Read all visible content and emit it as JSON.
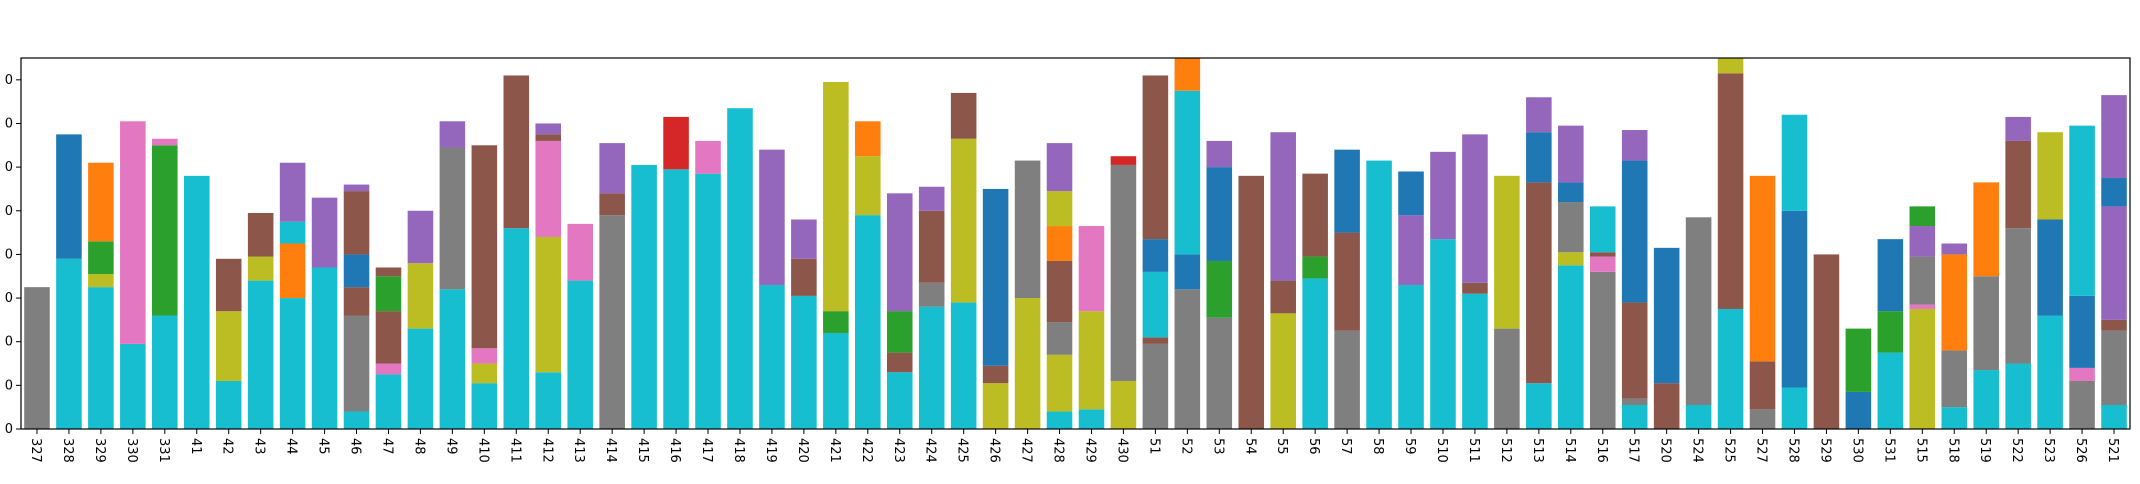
{
  "chart_data": {
    "type": "bar",
    "stacked": true,
    "title": "",
    "xlabel": "",
    "ylabel": "",
    "grid": false,
    "legend": "none",
    "ylim": [
      0,
      17
    ],
    "y_tick_labels": [
      "0",
      "0",
      "0",
      "0",
      "0",
      "0",
      "0",
      "0",
      "0"
    ],
    "categories": [
      "327",
      "328",
      "329",
      "330",
      "331",
      "41",
      "42",
      "43",
      "44",
      "45",
      "46",
      "47",
      "48",
      "49",
      "410",
      "411",
      "412",
      "413",
      "414",
      "415",
      "416",
      "417",
      "418",
      "419",
      "420",
      "421",
      "422",
      "423",
      "424",
      "425",
      "426",
      "427",
      "428",
      "429",
      "430",
      "51",
      "52",
      "53",
      "54",
      "55",
      "56",
      "57",
      "58",
      "59",
      "510",
      "511",
      "512",
      "513",
      "514",
      "516",
      "517",
      "520",
      "524",
      "525",
      "527",
      "528",
      "529",
      "530",
      "531",
      "515",
      "518",
      "519",
      "522",
      "523",
      "526",
      "521"
    ],
    "stacks": [
      [
        [
          "gray",
          6.5
        ]
      ],
      [
        [
          "cyan",
          7.8
        ],
        [
          "blue",
          5.7
        ]
      ],
      [
        [
          "cyan",
          6.5
        ],
        [
          "olive",
          0.6
        ],
        [
          "green",
          1.5
        ],
        [
          "orange",
          3.6
        ]
      ],
      [
        [
          "cyan",
          3.9
        ],
        [
          "pink",
          10.2
        ]
      ],
      [
        [
          "cyan",
          5.2
        ],
        [
          "green",
          7.8
        ],
        [
          "pink",
          0.3
        ]
      ],
      [
        [
          "cyan",
          11.6
        ]
      ],
      [
        [
          "cyan",
          2.2
        ],
        [
          "olive",
          3.2
        ],
        [
          "brown",
          2.4
        ]
      ],
      [
        [
          "cyan",
          6.8
        ],
        [
          "olive",
          1.1
        ],
        [
          "brown",
          2.0
        ]
      ],
      [
        [
          "cyan",
          6.0
        ],
        [
          "orange",
          2.5
        ],
        [
          "cyan",
          1.0
        ],
        [
          "purple",
          2.7
        ]
      ],
      [
        [
          "cyan",
          7.4
        ],
        [
          "purple",
          3.2
        ]
      ],
      [
        [
          "cyan",
          0.8
        ],
        [
          "gray",
          4.4
        ],
        [
          "brown",
          1.3
        ],
        [
          "blue",
          1.5
        ],
        [
          "brown",
          2.9
        ],
        [
          "purple",
          0.3
        ]
      ],
      [
        [
          "cyan",
          2.5
        ],
        [
          "pink",
          0.5
        ],
        [
          "brown",
          2.4
        ],
        [
          "green",
          1.6
        ],
        [
          "brown",
          0.4
        ]
      ],
      [
        [
          "cyan",
          4.6
        ],
        [
          "olive",
          3.0
        ],
        [
          "purple",
          2.4
        ]
      ],
      [
        [
          "cyan",
          6.4
        ],
        [
          "gray",
          6.5
        ],
        [
          "purple",
          1.2
        ]
      ],
      [
        [
          "cyan",
          2.1
        ],
        [
          "olive",
          0.9
        ],
        [
          "pink",
          0.7
        ],
        [
          "brown",
          9.3
        ]
      ],
      [
        [
          "cyan",
          9.2
        ],
        [
          "brown",
          7.0
        ]
      ],
      [
        [
          "cyan",
          2.6
        ],
        [
          "olive",
          6.2
        ],
        [
          "pink",
          4.4
        ],
        [
          "brown",
          0.3
        ],
        [
          "purple",
          0.5
        ]
      ],
      [
        [
          "cyan",
          6.8
        ],
        [
          "pink",
          2.6
        ]
      ],
      [
        [
          "gray",
          9.8
        ],
        [
          "brown",
          1.0
        ],
        [
          "purple",
          2.3
        ]
      ],
      [
        [
          "cyan",
          12.1
        ]
      ],
      [
        [
          "cyan",
          11.9
        ],
        [
          "red",
          2.4
        ]
      ],
      [
        [
          "cyan",
          11.7
        ],
        [
          "pink",
          1.5
        ]
      ],
      [
        [
          "cyan",
          14.7
        ]
      ],
      [
        [
          "cyan",
          6.6
        ],
        [
          "purple",
          6.2
        ]
      ],
      [
        [
          "cyan",
          6.1
        ],
        [
          "brown",
          1.7
        ],
        [
          "purple",
          1.8
        ]
      ],
      [
        [
          "cyan",
          4.4
        ],
        [
          "green",
          1.0
        ],
        [
          "olive",
          10.5
        ]
      ],
      [
        [
          "cyan",
          9.8
        ],
        [
          "olive",
          2.7
        ],
        [
          "orange",
          1.6
        ]
      ],
      [
        [
          "cyan",
          2.6
        ],
        [
          "brown",
          0.9
        ],
        [
          "green",
          1.9
        ],
        [
          "purple",
          5.4
        ]
      ],
      [
        [
          "cyan",
          5.6
        ],
        [
          "gray",
          1.1
        ],
        [
          "brown",
          3.3
        ],
        [
          "purple",
          1.1
        ]
      ],
      [
        [
          "cyan",
          5.8
        ],
        [
          "olive",
          7.5
        ],
        [
          "brown",
          2.1
        ]
      ],
      [
        [
          "olive",
          2.1
        ],
        [
          "brown",
          0.8
        ],
        [
          "blue",
          8.1
        ]
      ],
      [
        [
          "olive",
          6.0
        ],
        [
          "gray",
          6.3
        ]
      ],
      [
        [
          "cyan",
          0.8
        ],
        [
          "olive",
          2.6
        ],
        [
          "gray",
          1.5
        ],
        [
          "brown",
          2.8
        ],
        [
          "orange",
          1.6
        ],
        [
          "olive",
          1.6
        ],
        [
          "purple",
          2.2
        ]
      ],
      [
        [
          "cyan",
          0.9
        ],
        [
          "olive",
          4.5
        ],
        [
          "pink",
          3.9
        ]
      ],
      [
        [
          "olive",
          2.2
        ],
        [
          "gray",
          9.9
        ],
        [
          "red",
          0.4
        ]
      ],
      [
        [
          "gray",
          3.9
        ],
        [
          "brown",
          0.3
        ],
        [
          "cyan",
          3.0
        ],
        [
          "blue",
          1.5
        ],
        [
          "brown",
          7.5
        ]
      ],
      [
        [
          "gray",
          6.4
        ],
        [
          "blue",
          1.6
        ],
        [
          "cyan",
          7.5
        ],
        [
          "orange",
          1.5
        ]
      ],
      [
        [
          "gray",
          5.1
        ],
        [
          "green",
          2.6
        ],
        [
          "blue",
          4.3
        ],
        [
          "purple",
          1.2
        ]
      ],
      [
        [
          "brown",
          11.6
        ]
      ],
      [
        [
          "olive",
          5.3
        ],
        [
          "brown",
          1.5
        ],
        [
          "purple",
          6.8
        ]
      ],
      [
        [
          "cyan",
          6.9
        ],
        [
          "green",
          1.0
        ],
        [
          "brown",
          3.8
        ]
      ],
      [
        [
          "gray",
          4.5
        ],
        [
          "brown",
          4.5
        ],
        [
          "blue",
          3.8
        ]
      ],
      [
        [
          "cyan",
          12.3
        ]
      ],
      [
        [
          "cyan",
          6.6
        ],
        [
          "purple",
          3.2
        ],
        [
          "blue",
          2.0
        ]
      ],
      [
        [
          "cyan",
          8.7
        ],
        [
          "purple",
          4.0
        ]
      ],
      [
        [
          "cyan",
          6.2
        ],
        [
          "brown",
          0.5
        ],
        [
          "purple",
          6.8
        ]
      ],
      [
        [
          "gray",
          4.6
        ],
        [
          "olive",
          7.0
        ]
      ],
      [
        [
          "cyan",
          2.1
        ],
        [
          "brown",
          9.2
        ],
        [
          "blue",
          2.3
        ],
        [
          "purple",
          1.6
        ]
      ],
      [
        [
          "cyan",
          7.5
        ],
        [
          "olive",
          0.6
        ],
        [
          "gray",
          2.3
        ],
        [
          "blue",
          0.9
        ],
        [
          "purple",
          2.6
        ]
      ],
      [
        [
          "gray",
          7.2
        ],
        [
          "pink",
          0.7
        ],
        [
          "brown",
          0.2
        ],
        [
          "cyan",
          2.1
        ]
      ],
      [
        [
          "cyan",
          1.1
        ],
        [
          "gray",
          0.3
        ],
        [
          "brown",
          4.4
        ],
        [
          "blue",
          6.5
        ],
        [
          "purple",
          1.4
        ]
      ],
      [
        [
          "brown",
          2.1
        ],
        [
          "blue",
          6.2
        ]
      ],
      [
        [
          "cyan",
          1.1
        ],
        [
          "gray",
          8.6
        ]
      ],
      [
        [
          "cyan",
          5.5
        ],
        [
          "brown",
          10.8
        ],
        [
          "olive",
          0.7
        ]
      ],
      [
        [
          "gray",
          0.9
        ],
        [
          "brown",
          2.2
        ],
        [
          "orange",
          8.5
        ]
      ],
      [
        [
          "cyan",
          1.9
        ],
        [
          "blue",
          8.1
        ],
        [
          "cyan",
          4.4
        ]
      ],
      [
        [
          "brown",
          8.0
        ]
      ],
      [
        [
          "blue",
          1.7
        ],
        [
          "green",
          2.9
        ]
      ],
      [
        [
          "cyan",
          3.5
        ],
        [
          "green",
          1.9
        ],
        [
          "blue",
          3.3
        ]
      ],
      [
        [
          "olive",
          5.5
        ],
        [
          "pink",
          0.2
        ],
        [
          "gray",
          2.2
        ],
        [
          "purple",
          1.4
        ],
        [
          "green",
          0.9
        ]
      ],
      [
        [
          "cyan",
          1.0
        ],
        [
          "gray",
          2.6
        ],
        [
          "orange",
          4.4
        ],
        [
          "purple",
          0.5
        ]
      ],
      [
        [
          "cyan",
          2.7
        ],
        [
          "gray",
          4.3
        ],
        [
          "orange",
          4.3
        ]
      ],
      [
        [
          "cyan",
          3.0
        ],
        [
          "gray",
          6.2
        ],
        [
          "brown",
          4.0
        ],
        [
          "purple",
          1.1
        ]
      ],
      [
        [
          "cyan",
          5.2
        ],
        [
          "blue",
          4.4
        ],
        [
          "olive",
          4.0
        ]
      ],
      [
        [
          "gray",
          2.2
        ],
        [
          "pink",
          0.6
        ],
        [
          "blue",
          3.3
        ],
        [
          "cyan",
          7.8
        ]
      ],
      [
        [
          "cyan",
          1.1
        ],
        [
          "gray",
          3.4
        ],
        [
          "brown",
          0.5
        ],
        [
          "purple",
          5.2
        ],
        [
          "blue",
          1.3
        ],
        [
          "purple",
          3.8
        ]
      ]
    ],
    "colors": {
      "blue": "#1f77b4",
      "orange": "#ff7f0e",
      "green": "#2ca02c",
      "red": "#d62728",
      "purple": "#9467bd",
      "brown": "#8c564b",
      "pink": "#e377c2",
      "gray": "#7f7f7f",
      "olive": "#bcbd22",
      "cyan": "#17becf"
    }
  }
}
